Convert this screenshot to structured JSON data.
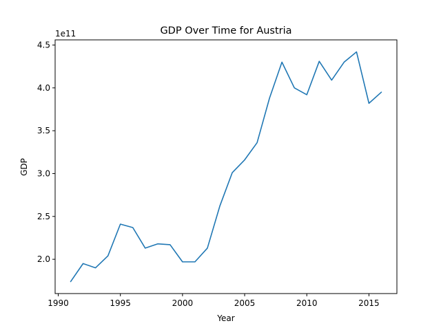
{
  "chart_data": {
    "type": "line",
    "title": "GDP Over Time for Austria",
    "xlabel": "Year",
    "ylabel": "GDP",
    "y_scale_label": "1e11",
    "xlim": [
      1989.75,
      2017.25
    ],
    "ylim": [
      1.6,
      4.56
    ],
    "grid": false,
    "color": "#1f77b4",
    "x_ticks": [
      1990,
      1995,
      2000,
      2005,
      2010,
      2015
    ],
    "x_tick_labels": [
      "1990",
      "1995",
      "2000",
      "2005",
      "2010",
      "2015"
    ],
    "y_ticks": [
      2.0,
      2.5,
      3.0,
      3.5,
      4.0,
      4.5
    ],
    "y_tick_labels": [
      "2.0",
      "2.5",
      "3.0",
      "3.5",
      "4.0",
      "4.5"
    ],
    "x": [
      1991,
      1992,
      1993,
      1994,
      1995,
      1996,
      1997,
      1998,
      1999,
      2000,
      2001,
      2002,
      2003,
      2004,
      2005,
      2006,
      2007,
      2008,
      2009,
      2010,
      2011,
      2012,
      2013,
      2014,
      2015,
      2016
    ],
    "series": [
      {
        "values": [
          1.74,
          1.95,
          1.9,
          2.04,
          2.41,
          2.37,
          2.13,
          2.18,
          2.17,
          1.97,
          1.97,
          2.13,
          2.62,
          3.01,
          3.16,
          3.36,
          3.88,
          4.3,
          4.0,
          3.92,
          4.31,
          4.09,
          4.3,
          4.42,
          3.82,
          3.95
        ]
      }
    ]
  }
}
